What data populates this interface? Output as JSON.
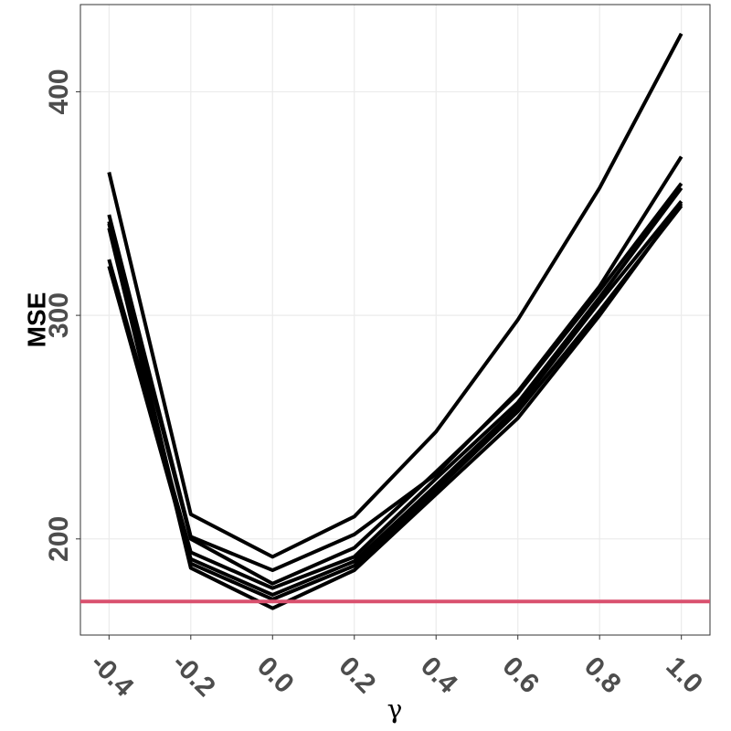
{
  "chart_data": {
    "type": "line",
    "x_label": "γ",
    "y_label": "MSE",
    "x": [
      -0.4,
      -0.2,
      0,
      0.2,
      0.4,
      0.6,
      0.8,
      1.0
    ],
    "series": [
      {
        "color": "#000000",
        "values": [
          364,
          211,
          192,
          210,
          248,
          298,
          357,
          426
        ]
      },
      {
        "color": "#000000",
        "values": [
          345,
          201,
          186,
          202,
          229,
          266,
          313,
          371
        ]
      },
      {
        "color": "#000000",
        "values": [
          342,
          200,
          180,
          196,
          230,
          265,
          311,
          359
        ]
      },
      {
        "color": "#000000",
        "values": [
          325,
          194,
          178,
          192,
          227,
          261,
          308,
          357
        ]
      },
      {
        "color": "#000000",
        "values": [
          322,
          191,
          175,
          190,
          224,
          259,
          306,
          351
        ]
      },
      {
        "color": "#000000",
        "values": [
          341,
          189,
          173,
          188,
          222,
          257,
          302,
          349
        ]
      },
      {
        "color": "#000000",
        "values": [
          339,
          187,
          169,
          186,
          220,
          254,
          300,
          350
        ]
      }
    ],
    "hline": {
      "value": 172,
      "color": "#d9506e"
    },
    "xlim": [
      -0.47,
      1.07
    ],
    "xticks": [
      -0.4,
      -0.2,
      {
        "value": 0,
        "label": "0.0"
      },
      0.2,
      0.4,
      0.6,
      0.8,
      {
        "value": 1.0,
        "label": "1.0"
      }
    ],
    "ylim": [
      157,
      439
    ],
    "yticks": [
      200,
      300,
      400
    ],
    "grid": true
  }
}
